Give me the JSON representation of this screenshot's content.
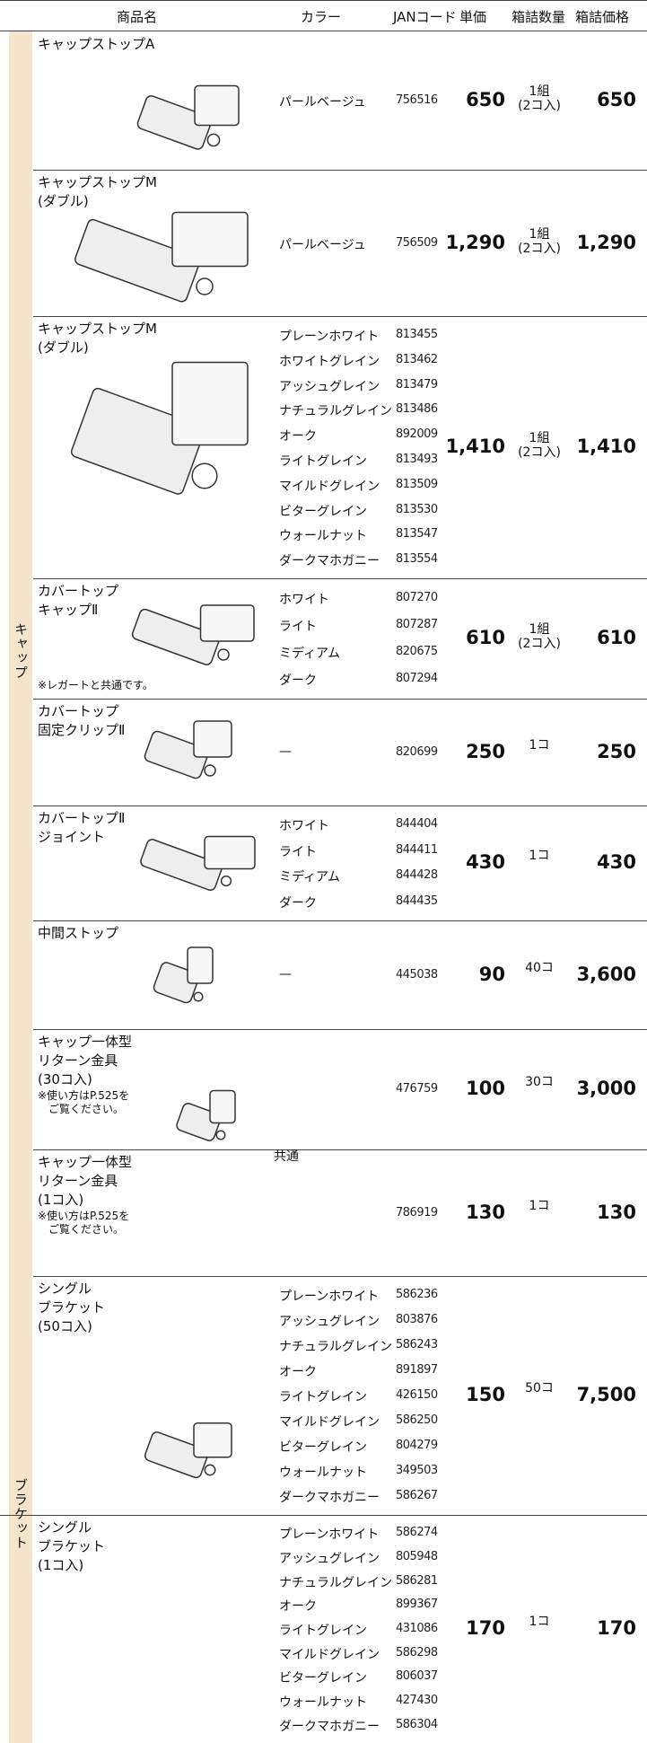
{
  "header": {
    "name": "商品名",
    "color": "カラー",
    "jan": "JANコード",
    "price": "単価",
    "qty": "箱詰数量",
    "box_price": "箱詰価格"
  },
  "categories": [
    "キャップ",
    "ブラケット"
  ],
  "shared_color": "共通",
  "products": [
    {
      "name": [
        "キャップストップA"
      ],
      "colors": [
        "パールベージュ"
      ],
      "jan": [
        "756516"
      ],
      "price": "650",
      "qty": [
        "1組",
        "(2コ入)"
      ],
      "box_price": "650"
    },
    {
      "name": [
        "キャップストップM",
        "(ダブル)"
      ],
      "colors": [
        "パールベージュ"
      ],
      "jan": [
        "756509"
      ],
      "price": "1,290",
      "qty": [
        "1組",
        "(2コ入)"
      ],
      "box_price": "1,290"
    },
    {
      "name": [
        "キャップストップM",
        "(ダブル)"
      ],
      "colors": [
        "プレーンホワイト",
        "ホワイトグレイン",
        "アッシュグレイン",
        "ナチュラルグレイン",
        "オーク",
        "ライトグレイン",
        "マイルドグレイン",
        "ビターグレイン",
        "ウォールナット",
        "ダークマホガニー"
      ],
      "jan": [
        "813455",
        "813462",
        "813479",
        "813486",
        "892009",
        "813493",
        "813509",
        "813530",
        "813547",
        "813554"
      ],
      "price": "1,410",
      "qty": [
        "1組",
        "(2コ入)"
      ],
      "box_price": "1,410"
    },
    {
      "name": [
        "カバートップ",
        "キャップⅡ"
      ],
      "note": [
        "※レガートと共通です。"
      ],
      "colors": [
        "ホワイト",
        "ライト",
        "ミディアム",
        "ダーク"
      ],
      "jan": [
        "807270",
        "807287",
        "820675",
        "807294"
      ],
      "price": "610",
      "qty": [
        "1組",
        "(2コ入)"
      ],
      "box_price": "610"
    },
    {
      "name": [
        "カバートップ",
        "固定クリップⅡ"
      ],
      "colors": [
        "—"
      ],
      "jan": [
        "820699"
      ],
      "price": "250",
      "qty": [
        "1コ"
      ],
      "box_price": "250"
    },
    {
      "name": [
        "カバートップⅡ",
        "ジョイント"
      ],
      "colors": [
        "ホワイト",
        "ライト",
        "ミディアム",
        "ダーク"
      ],
      "jan": [
        "844404",
        "844411",
        "844428",
        "844435"
      ],
      "price": "430",
      "qty": [
        "1コ"
      ],
      "box_price": "430"
    },
    {
      "name": [
        "中間ストップ"
      ],
      "colors": [
        "—"
      ],
      "jan": [
        "445038"
      ],
      "price": "90",
      "qty": [
        "40コ"
      ],
      "box_price": "3,600"
    },
    {
      "name": [
        "キャップ一体型",
        "リターン金具",
        "(30コ入)"
      ],
      "note": [
        "※使い方はP.525を",
        "ご覧ください。"
      ],
      "jan": [
        "476759"
      ],
      "price": "100",
      "qty": [
        "30コ"
      ],
      "box_price": "3,000"
    },
    {
      "name": [
        "キャップ一体型",
        "リターン金具",
        "(1コ入)"
      ],
      "note": [
        "※使い方はP.525を",
        "ご覧ください。"
      ],
      "jan": [
        "786919"
      ],
      "price": "130",
      "qty": [
        "1コ"
      ],
      "box_price": "130"
    },
    {
      "name": [
        "シングル",
        "ブラケット",
        "(50コ入)"
      ],
      "colors": [
        "プレーンホワイト",
        "アッシュグレイン",
        "ナチュラルグレイン",
        "オーク",
        "ライトグレイン",
        "マイルドグレイン",
        "ビターグレイン",
        "ウォールナット",
        "ダークマホガニー"
      ],
      "jan": [
        "586236",
        "803876",
        "586243",
        "891897",
        "426150",
        "586250",
        "804279",
        "349503",
        "586267"
      ],
      "price": "150",
      "qty": [
        "50コ"
      ],
      "box_price": "7,500"
    },
    {
      "name": [
        "シングル",
        "ブラケット",
        "(1コ入)"
      ],
      "colors": [
        "プレーンホワイト",
        "アッシュグレイン",
        "ナチュラルグレイン",
        "オーク",
        "ライトグレイン",
        "マイルドグレイン",
        "ビターグレイン",
        "ウォールナット",
        "ダークマホガニー"
      ],
      "jan": [
        "586274",
        "805948",
        "586281",
        "899367",
        "431086",
        "586298",
        "806037",
        "427430",
        "586304"
      ],
      "price": "170",
      "qty": [
        "1コ"
      ],
      "box_price": "170"
    }
  ]
}
